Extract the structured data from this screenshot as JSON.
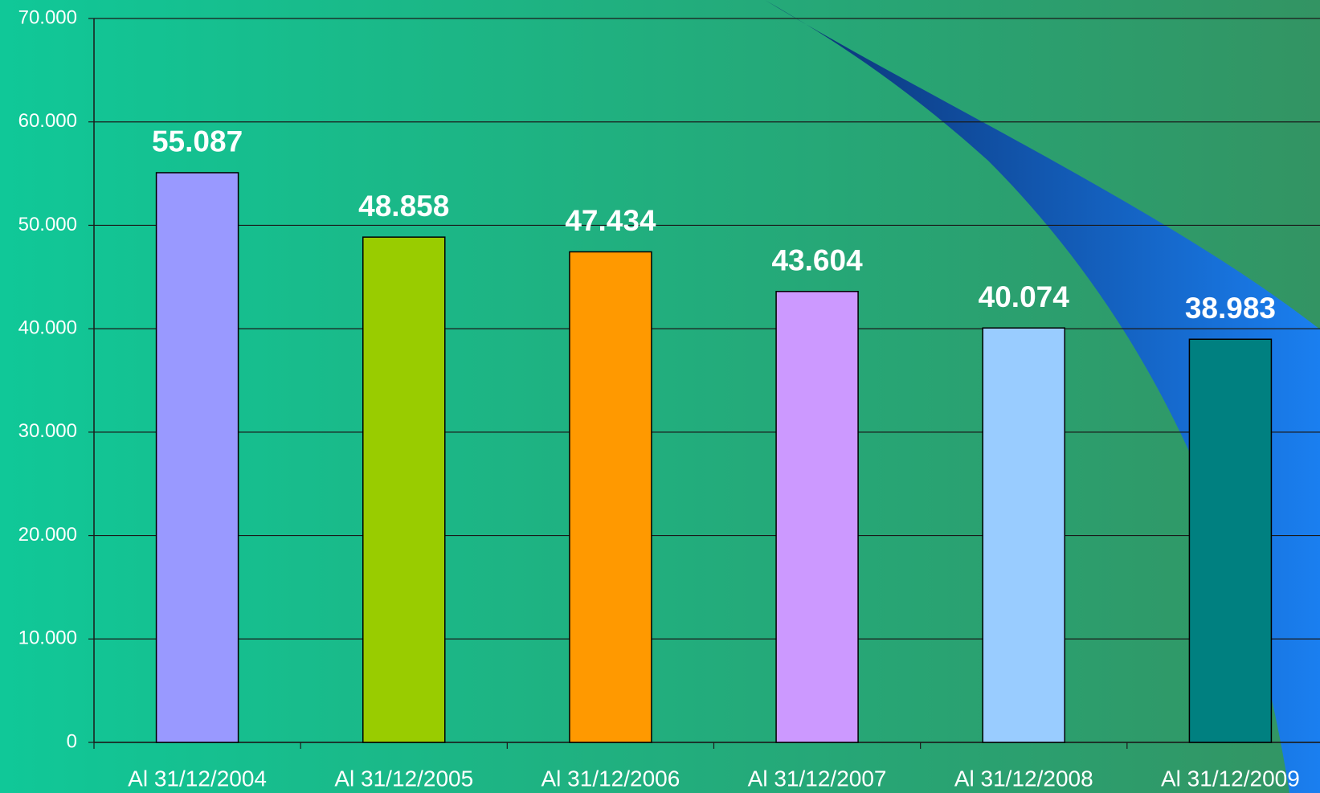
{
  "chart_data": {
    "type": "bar",
    "categories": [
      "Al 31/12/2004",
      "Al 31/12/2005",
      "Al 31/12/2006",
      "Al 31/12/2007",
      "Al 31/12/2008",
      "Al 31/12/2009"
    ],
    "values": [
      55087,
      48858,
      47434,
      43604,
      40074,
      38983
    ],
    "value_labels": [
      "55.087",
      "48.858",
      "47.434",
      "43.604",
      "40.074",
      "38.983"
    ],
    "colors": [
      "#9999ff",
      "#99cc00",
      "#ff9900",
      "#cc99ff",
      "#99ccff",
      "#008080"
    ],
    "ylim": [
      0,
      70000
    ],
    "yticks": [
      0,
      {
        "value": 10000,
        "label": "10.000"
      },
      {
        "value": 20000,
        "label": "20.000"
      },
      {
        "value": 30000,
        "label": "30.000"
      },
      {
        "value": 40000,
        "label": "40.000"
      },
      {
        "value": 50000,
        "label": "50.000"
      },
      {
        "value": 60000,
        "label": "60.000"
      },
      {
        "value": 70000,
        "label": "70.000"
      }
    ],
    "grid": true
  }
}
